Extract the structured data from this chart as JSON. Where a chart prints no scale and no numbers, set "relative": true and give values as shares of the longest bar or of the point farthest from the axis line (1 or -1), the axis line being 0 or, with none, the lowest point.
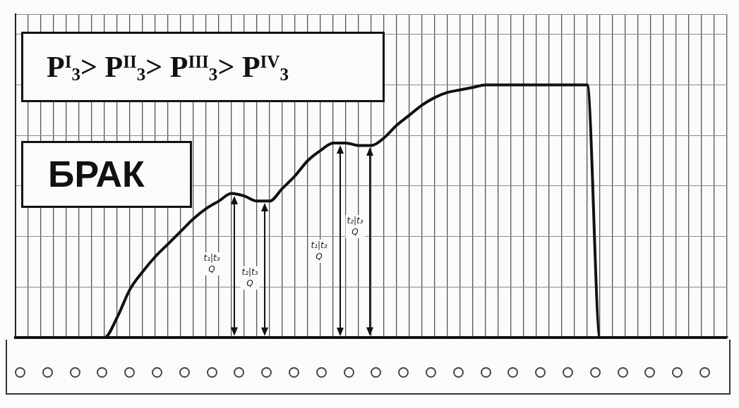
{
  "chart_data": {
    "type": "line",
    "categories": [
      null,
      null,
      null,
      null,
      null,
      null,
      null,
      null,
      null,
      null,
      null,
      null,
      null,
      null,
      null,
      null,
      null,
      null,
      null,
      null,
      null,
      null,
      null,
      null,
      null,
      null,
      null,
      null,
      null,
      null,
      null,
      null,
      null,
      null,
      null,
      null,
      null,
      null,
      null,
      null,
      null,
      null,
      null,
      null,
      null,
      null,
      null,
      null,
      null,
      null,
      null,
      null,
      null,
      null,
      null,
      null,
      null
    ],
    "values": [
      0,
      0,
      0,
      0,
      0,
      0,
      0,
      0,
      0.08,
      0.19,
      0.26,
      0.32,
      0.37,
      0.42,
      0.47,
      0.51,
      0.54,
      0.57,
      0.56,
      0.54,
      0.54,
      0.59,
      0.64,
      0.7,
      0.74,
      0.77,
      0.77,
      0.76,
      0.76,
      0.79,
      0.84,
      0.88,
      0.92,
      0.95,
      0.97,
      0.98,
      0.99,
      1,
      1,
      1,
      1,
      1,
      1,
      1,
      1,
      1,
      0,
      0,
      0,
      0,
      0,
      0,
      0,
      0,
      0,
      0,
      0
    ],
    "color": "#111111",
    "relative": true,
    "grid": true,
    "marker": "none",
    "line_style": "solid",
    "tick_labels": false,
    "annotations": [
      "P$^{I}$$_{3}$> P$^{II}$$_{3}$> P$^{III}$$_{3}$> P$^{IV}$$_{3}$",
      "БРАК",
      "t₁|t₃\nQ",
      "t₂|t₃\nQ",
      "t₁|t₃\nQ",
      "t₂|t₃\nQ"
    ]
  }
}
